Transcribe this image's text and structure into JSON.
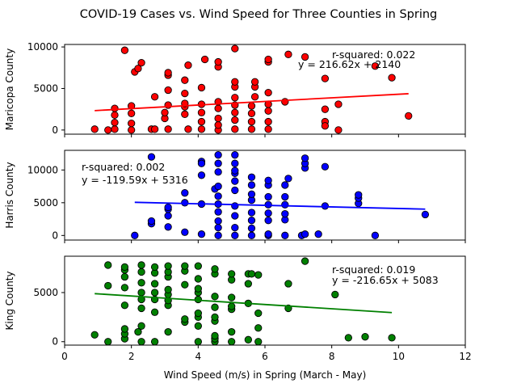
{
  "chart_data": {
    "type": "scatter",
    "title": "COVID-19 Cases vs. Wind Speed for Three Counties in Spring",
    "xlabel": "Wind Speed (m/s) in Spring (March - May)",
    "xlim": [
      0,
      12
    ],
    "xticks": [
      0,
      2,
      4,
      6,
      8,
      10,
      12
    ],
    "grid": false,
    "panels": [
      {
        "name": "maricopa",
        "ylabel": "Maricopa County",
        "ylim": [
          -500,
          10300
        ],
        "yticks": [
          0,
          5000,
          10000
        ],
        "point_color": "#ff0000",
        "line_color": "#ff0000",
        "r_squared_text": "r-squared: 0.022",
        "equation_text": "y = 216.62x + 2140",
        "fit": {
          "slope": 216.62,
          "intercept": 2140,
          "x_range": [
            0.9,
            10.3
          ]
        },
        "points": [
          [
            0.9,
            100
          ],
          [
            1.3,
            0
          ],
          [
            1.5,
            100
          ],
          [
            1.5,
            900
          ],
          [
            1.5,
            1800
          ],
          [
            1.5,
            2600
          ],
          [
            1.8,
            9600
          ],
          [
            2.0,
            0
          ],
          [
            2.0,
            800
          ],
          [
            2.0,
            2000
          ],
          [
            2.0,
            2900
          ],
          [
            2.1,
            7000
          ],
          [
            2.2,
            7400
          ],
          [
            2.3,
            8100
          ],
          [
            2.6,
            100
          ],
          [
            2.7,
            100
          ],
          [
            2.7,
            4000
          ],
          [
            3.0,
            1400
          ],
          [
            3.0,
            2100
          ],
          [
            3.1,
            4800
          ],
          [
            3.1,
            6600
          ],
          [
            3.1,
            100
          ],
          [
            3.1,
            3000
          ],
          [
            3.1,
            6900
          ],
          [
            3.6,
            1900
          ],
          [
            3.6,
            2800
          ],
          [
            3.6,
            3200
          ],
          [
            3.6,
            4400
          ],
          [
            3.6,
            6000
          ],
          [
            3.7,
            7800
          ],
          [
            3.7,
            100
          ],
          [
            4.1,
            100
          ],
          [
            4.1,
            1000
          ],
          [
            4.1,
            2100
          ],
          [
            4.1,
            3100
          ],
          [
            4.1,
            5100
          ],
          [
            4.2,
            8500
          ],
          [
            4.6,
            0
          ],
          [
            4.6,
            600
          ],
          [
            4.6,
            1400
          ],
          [
            4.6,
            2600
          ],
          [
            4.6,
            3400
          ],
          [
            4.6,
            7600
          ],
          [
            4.6,
            8200
          ],
          [
            5.1,
            100
          ],
          [
            5.1,
            1200
          ],
          [
            5.1,
            2100
          ],
          [
            5.1,
            3000
          ],
          [
            5.1,
            3900
          ],
          [
            5.1,
            5200
          ],
          [
            5.1,
            5800
          ],
          [
            5.1,
            9800
          ],
          [
            5.6,
            100
          ],
          [
            5.6,
            1000
          ],
          [
            5.6,
            2000
          ],
          [
            5.6,
            2900
          ],
          [
            5.7,
            4000
          ],
          [
            5.7,
            5200
          ],
          [
            5.7,
            5800
          ],
          [
            6.1,
            100
          ],
          [
            6.1,
            1000
          ],
          [
            6.1,
            2300
          ],
          [
            6.1,
            3100
          ],
          [
            6.1,
            4500
          ],
          [
            6.1,
            8200
          ],
          [
            6.1,
            8500
          ],
          [
            6.6,
            3400
          ],
          [
            6.7,
            9100
          ],
          [
            7.2,
            8800
          ],
          [
            7.8,
            6200
          ],
          [
            7.8,
            2500
          ],
          [
            7.8,
            1000
          ],
          [
            7.8,
            500
          ],
          [
            8.2,
            0
          ],
          [
            8.2,
            3100
          ],
          [
            9.3,
            7700
          ],
          [
            9.8,
            6300
          ],
          [
            10.3,
            1700
          ]
        ]
      },
      {
        "name": "harris",
        "ylabel": "Harris County",
        "ylim": [
          -700,
          13000
        ],
        "yticks": [
          0,
          5000,
          10000
        ],
        "point_color": "#0000ff",
        "line_color": "#0000ff",
        "r_squared_text": "r-squared: 0.002",
        "equation_text": "y = -119.59x + 5316",
        "fit": {
          "slope": -119.59,
          "intercept": 5316,
          "x_range": [
            2.1,
            10.8
          ]
        },
        "points": [
          [
            2.1,
            0
          ],
          [
            2.6,
            1800
          ],
          [
            2.6,
            2200
          ],
          [
            2.6,
            12000
          ],
          [
            3.1,
            1300
          ],
          [
            3.1,
            3000
          ],
          [
            3.1,
            4000
          ],
          [
            3.1,
            4300
          ],
          [
            3.6,
            500
          ],
          [
            3.6,
            5000
          ],
          [
            3.6,
            6500
          ],
          [
            4.1,
            200
          ],
          [
            4.1,
            4800
          ],
          [
            4.1,
            9200
          ],
          [
            4.1,
            11300
          ],
          [
            4.1,
            11000
          ],
          [
            4.5,
            7100
          ],
          [
            4.6,
            0
          ],
          [
            4.6,
            1200
          ],
          [
            4.6,
            2200
          ],
          [
            4.6,
            3600
          ],
          [
            4.6,
            4800
          ],
          [
            4.6,
            6000
          ],
          [
            4.6,
            7500
          ],
          [
            4.6,
            9700
          ],
          [
            4.6,
            11000
          ],
          [
            4.6,
            12300
          ],
          [
            5.1,
            0
          ],
          [
            5.1,
            1200
          ],
          [
            5.1,
            3000
          ],
          [
            5.1,
            4500
          ],
          [
            5.1,
            6900
          ],
          [
            5.1,
            8300
          ],
          [
            5.1,
            9500
          ],
          [
            5.1,
            9900
          ],
          [
            5.1,
            11000
          ],
          [
            5.1,
            12300
          ],
          [
            5.6,
            0
          ],
          [
            5.6,
            1100
          ],
          [
            5.6,
            2300
          ],
          [
            5.6,
            3500
          ],
          [
            5.6,
            5400
          ],
          [
            5.6,
            6300
          ],
          [
            5.6,
            7700
          ],
          [
            5.6,
            8900
          ],
          [
            6.1,
            0
          ],
          [
            6.1,
            200
          ],
          [
            6.1,
            2300
          ],
          [
            6.1,
            3400
          ],
          [
            6.1,
            4700
          ],
          [
            6.1,
            5900
          ],
          [
            6.1,
            7700
          ],
          [
            6.1,
            8400
          ],
          [
            6.6,
            0
          ],
          [
            6.6,
            2400
          ],
          [
            6.6,
            3300
          ],
          [
            6.6,
            4700
          ],
          [
            6.6,
            5900
          ],
          [
            6.6,
            7700
          ],
          [
            6.7,
            8700
          ],
          [
            7.1,
            0
          ],
          [
            7.2,
            200
          ],
          [
            7.2,
            10300
          ],
          [
            7.2,
            11000
          ],
          [
            7.2,
            11800
          ],
          [
            7.6,
            200
          ],
          [
            7.8,
            4500
          ],
          [
            7.8,
            10500
          ],
          [
            8.8,
            4900
          ],
          [
            8.8,
            5700
          ],
          [
            8.8,
            6200
          ],
          [
            9.3,
            0
          ],
          [
            10.8,
            3200
          ]
        ]
      },
      {
        "name": "king",
        "ylabel": "King County",
        "ylim": [
          -350,
          8700
        ],
        "yticks": [
          0,
          5000
        ],
        "point_color": "#008000",
        "line_color": "#008000",
        "r_squared_text": "r-squared: 0.019",
        "equation_text": "y = -216.65x + 5083",
        "fit": {
          "slope": -216.65,
          "intercept": 5083,
          "x_range": [
            0.9,
            9.8
          ]
        },
        "points": [
          [
            0.9,
            700
          ],
          [
            1.3,
            0
          ],
          [
            1.3,
            5700
          ],
          [
            1.3,
            7800
          ],
          [
            1.8,
            300
          ],
          [
            1.8,
            800
          ],
          [
            1.8,
            1300
          ],
          [
            1.8,
            3700
          ],
          [
            1.8,
            5500
          ],
          [
            1.8,
            6600
          ],
          [
            1.8,
            7300
          ],
          [
            1.8,
            7600
          ],
          [
            2.2,
            1000
          ],
          [
            2.3,
            0
          ],
          [
            2.3,
            1600
          ],
          [
            2.3,
            3400
          ],
          [
            2.3,
            4300
          ],
          [
            2.3,
            5000
          ],
          [
            2.3,
            6000
          ],
          [
            2.3,
            7100
          ],
          [
            2.3,
            7800
          ],
          [
            2.7,
            0
          ],
          [
            2.7,
            3000
          ],
          [
            2.7,
            4300
          ],
          [
            2.7,
            5000
          ],
          [
            2.7,
            5900
          ],
          [
            2.7,
            7000
          ],
          [
            2.7,
            7600
          ],
          [
            3.1,
            1000
          ],
          [
            3.1,
            3700
          ],
          [
            3.1,
            4200
          ],
          [
            3.1,
            4800
          ],
          [
            3.1,
            5300
          ],
          [
            3.1,
            6600
          ],
          [
            3.1,
            7100
          ],
          [
            3.1,
            7700
          ],
          [
            3.6,
            2000
          ],
          [
            3.6,
            2300
          ],
          [
            3.6,
            5800
          ],
          [
            3.6,
            7200
          ],
          [
            3.6,
            7700
          ],
          [
            4.0,
            0
          ],
          [
            4.0,
            1600
          ],
          [
            4.0,
            2500
          ],
          [
            4.0,
            2900
          ],
          [
            4.0,
            4300
          ],
          [
            4.0,
            5000
          ],
          [
            4.0,
            5400
          ],
          [
            4.0,
            6400
          ],
          [
            4.0,
            7700
          ],
          [
            4.5,
            0
          ],
          [
            4.5,
            300
          ],
          [
            4.5,
            600
          ],
          [
            4.5,
            2100
          ],
          [
            4.5,
            2500
          ],
          [
            4.5,
            3500
          ],
          [
            4.5,
            4600
          ],
          [
            4.5,
            6900
          ],
          [
            4.5,
            7400
          ],
          [
            5.0,
            0
          ],
          [
            5.0,
            1000
          ],
          [
            5.0,
            3300
          ],
          [
            5.0,
            3600
          ],
          [
            5.0,
            4500
          ],
          [
            5.0,
            6300
          ],
          [
            5.0,
            6900
          ],
          [
            5.5,
            200
          ],
          [
            5.5,
            3900
          ],
          [
            5.5,
            5900
          ],
          [
            5.5,
            6900
          ],
          [
            5.6,
            6900
          ],
          [
            5.8,
            0
          ],
          [
            5.8,
            1400
          ],
          [
            5.8,
            2900
          ],
          [
            5.8,
            6800
          ],
          [
            6.7,
            3400
          ],
          [
            6.7,
            5900
          ],
          [
            7.2,
            8200
          ],
          [
            8.1,
            4800
          ],
          [
            8.5,
            400
          ],
          [
            9.0,
            500
          ],
          [
            9.8,
            400
          ]
        ]
      }
    ]
  }
}
